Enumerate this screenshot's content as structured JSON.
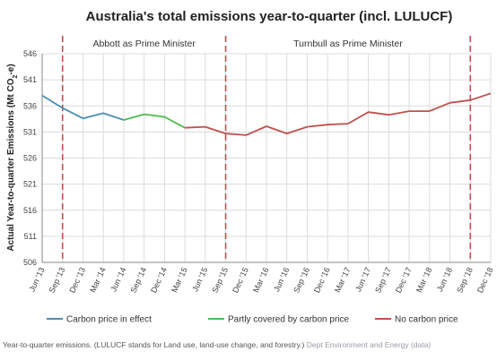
{
  "chart_data": {
    "type": "line",
    "title": "Australia's total emissions year-to-quarter (incl. LULUCF)",
    "ylabel_parts": [
      "Actual Year-to-quarter Emissions (Mt CO",
      "2",
      "-e)"
    ],
    "ylim": [
      506,
      546
    ],
    "yticks": [
      506,
      511,
      516,
      521,
      526,
      531,
      536,
      541,
      546
    ],
    "x": [
      "Jun '13",
      "Sep '13",
      "Dec '13",
      "Mar '14",
      "Jun '14",
      "Sep '14",
      "Dec '14",
      "Mar '15",
      "Jun '15",
      "Sep '15",
      "Dec '15",
      "Mar '16",
      "Jun '16",
      "Sep '16",
      "Dec '16",
      "Mar '17",
      "Jun '17",
      "Sep '17",
      "Dec '17",
      "Mar '18",
      "Jun '18",
      "Sep '18",
      "Dec '18"
    ],
    "values": [
      538.0,
      535.6,
      533.6,
      534.6,
      533.3,
      534.4,
      533.9,
      531.8,
      532.0,
      530.7,
      530.4,
      532.1,
      530.7,
      532.0,
      532.4,
      532.6,
      534.8,
      534.3,
      535.0,
      535.0,
      536.6,
      537.1,
      538.4
    ],
    "series": [
      {
        "name": "Carbon price in effect",
        "color": "#4a8db5",
        "range": [
          0,
          4
        ]
      },
      {
        "name": "Partly covered by carbon price",
        "color": "#4dbd4d",
        "range": [
          4,
          7
        ]
      },
      {
        "name": "No carbon price",
        "color": "#c0504d",
        "range": [
          7,
          22
        ]
      }
    ],
    "periods": [
      {
        "label": "Abbott as Prime Minister",
        "from": 1,
        "to": 9
      },
      {
        "label": "Turnbull as Prime Minister",
        "from": 9,
        "to": 21
      }
    ],
    "dividers": [
      1,
      9,
      21
    ],
    "divider_color": "#c0504d",
    "grid": true,
    "legend_position": "bottom"
  },
  "caption": {
    "text": "Year-to-quarter emissions. (LULUCF stands for Land use, land-use change, and forestry.)",
    "credit": "Dept Environment and Energy (data)"
  }
}
